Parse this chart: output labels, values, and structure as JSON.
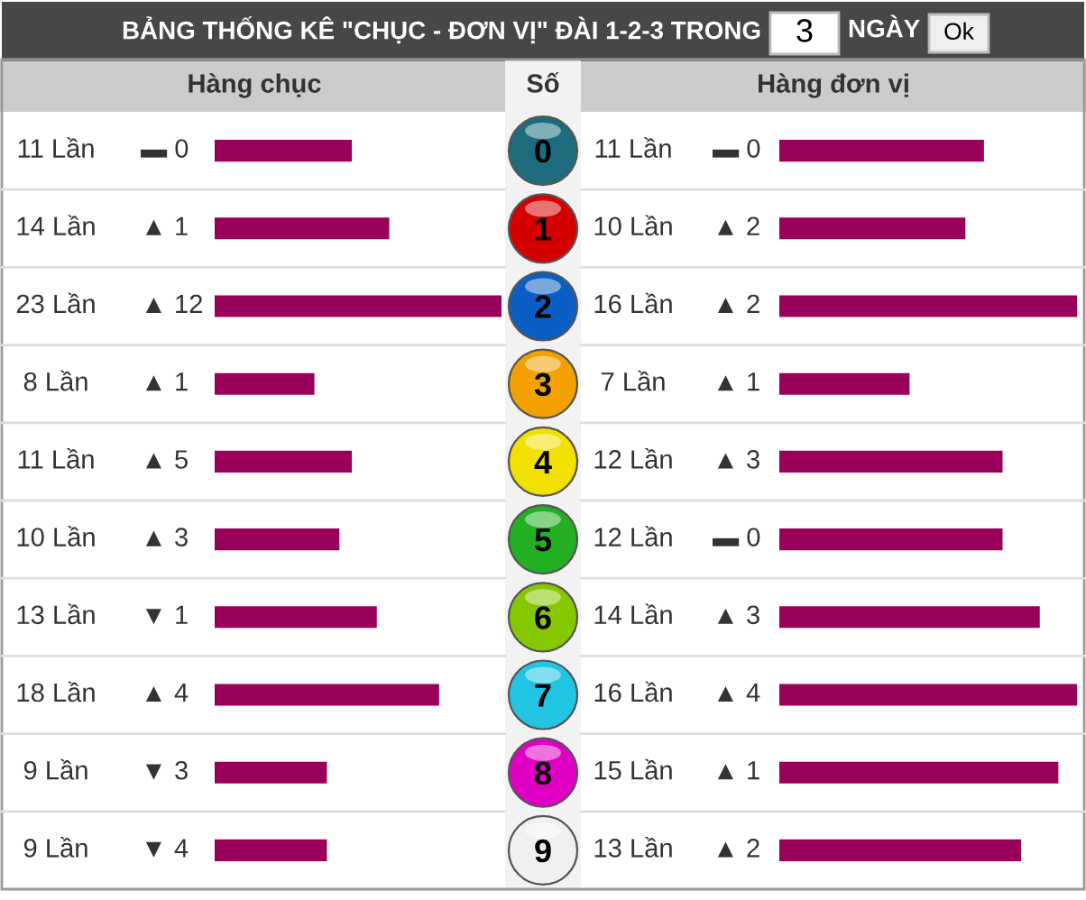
{
  "chart_data": [
    {
      "type": "bar",
      "orientation": "horizontal",
      "title": "BẢNG THỐNG KÊ \"CHỤC - ĐƠN VỊ\" ĐÀI 1-2-3 TRONG",
      "xlabel": "Hàng chục",
      "ylabel": "Số",
      "categories": [
        "0",
        "1",
        "2",
        "3",
        "4",
        "5",
        "6",
        "7",
        "8",
        "9"
      ],
      "values": [
        11,
        14,
        23,
        8,
        11,
        10,
        13,
        18,
        9,
        9
      ],
      "color": "#99005a",
      "value_labels": [
        "11 Lần",
        "14 Lần",
        "23 Lần",
        "8 Lần",
        "11 Lần",
        "10 Lần",
        "13 Lần",
        "18 Lần",
        "9 Lần",
        "9 Lần"
      ],
      "xlim": [
        0,
        23
      ],
      "tick_labels": "y",
      "annotations": [
        "3",
        "NGÀY",
        "Ok",
        "▬ 0",
        "▲ 1",
        "▲ 12",
        "▲ 1",
        "▲ 5",
        "▲ 3",
        "▼ 1",
        "▲ 4",
        "▼ 3",
        "▼ 4"
      ]
    },
    {
      "type": "bar",
      "orientation": "horizontal",
      "xlabel": "Hàng đơn vị",
      "categories": [
        "0",
        "1",
        "2",
        "3",
        "4",
        "5",
        "6",
        "7",
        "8",
        "9"
      ],
      "values": [
        11,
        10,
        16,
        7,
        12,
        12,
        14,
        16,
        15,
        13
      ],
      "color": "#99005a",
      "value_labels": [
        "11 Lần",
        "10 Lần",
        "16 Lần",
        "7 Lần",
        "12 Lần",
        "12 Lần",
        "14 Lần",
        "16 Lần",
        "15 Lần",
        "13 Lần"
      ],
      "xlim": [
        0,
        16
      ],
      "tick_labels": false,
      "annotations": [
        "▬ 0",
        "▲ 2",
        "▲ 2",
        "▲ 1",
        "▲ 3",
        "▬ 0",
        "▲ 3",
        "▲ 4",
        "▲ 1",
        "▲ 2"
      ]
    }
  ]
}
